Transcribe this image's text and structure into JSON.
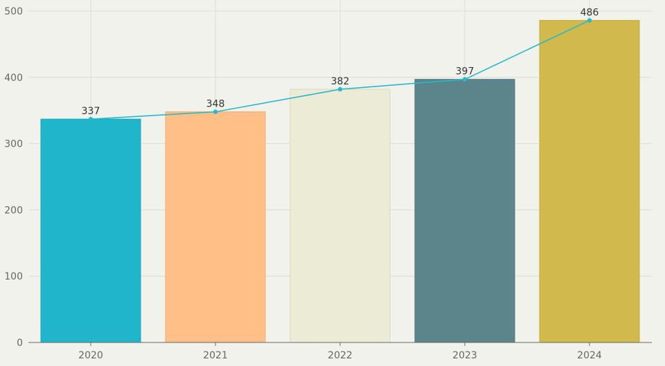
{
  "chart_data": {
    "type": "bar",
    "title": "",
    "xlabel": "",
    "ylabel": "",
    "categories": [
      "2020",
      "2021",
      "2022",
      "2023",
      "2024"
    ],
    "values": [
      337,
      348,
      382,
      397,
      486
    ],
    "bar_colors": [
      "#1fb6cb",
      "#ffbf86",
      "#ebebd6",
      "#5b848b",
      "#d2b94b"
    ],
    "bar_edge_colors": [
      "#1aa7ba",
      "#f0ad73",
      "#d9d9c0",
      "#4e767d",
      "#c4aa3e"
    ],
    "overlay_line": {
      "type": "line",
      "values": [
        337,
        348,
        382,
        397,
        486
      ],
      "color": "#27b8cc",
      "markers": true
    },
    "data_labels": [
      "337",
      "348",
      "382",
      "397",
      "486"
    ],
    "ylim": [
      0,
      500
    ],
    "yticks": [
      0,
      100,
      200,
      300,
      400,
      500
    ],
    "ytick_labels": [
      "0",
      "100",
      "200",
      "300",
      "400",
      "500"
    ],
    "grid": true,
    "legend": "none",
    "background_color": "#f2f2ec",
    "grid_color": "#dcdcd6",
    "axis_color": "#666666"
  }
}
